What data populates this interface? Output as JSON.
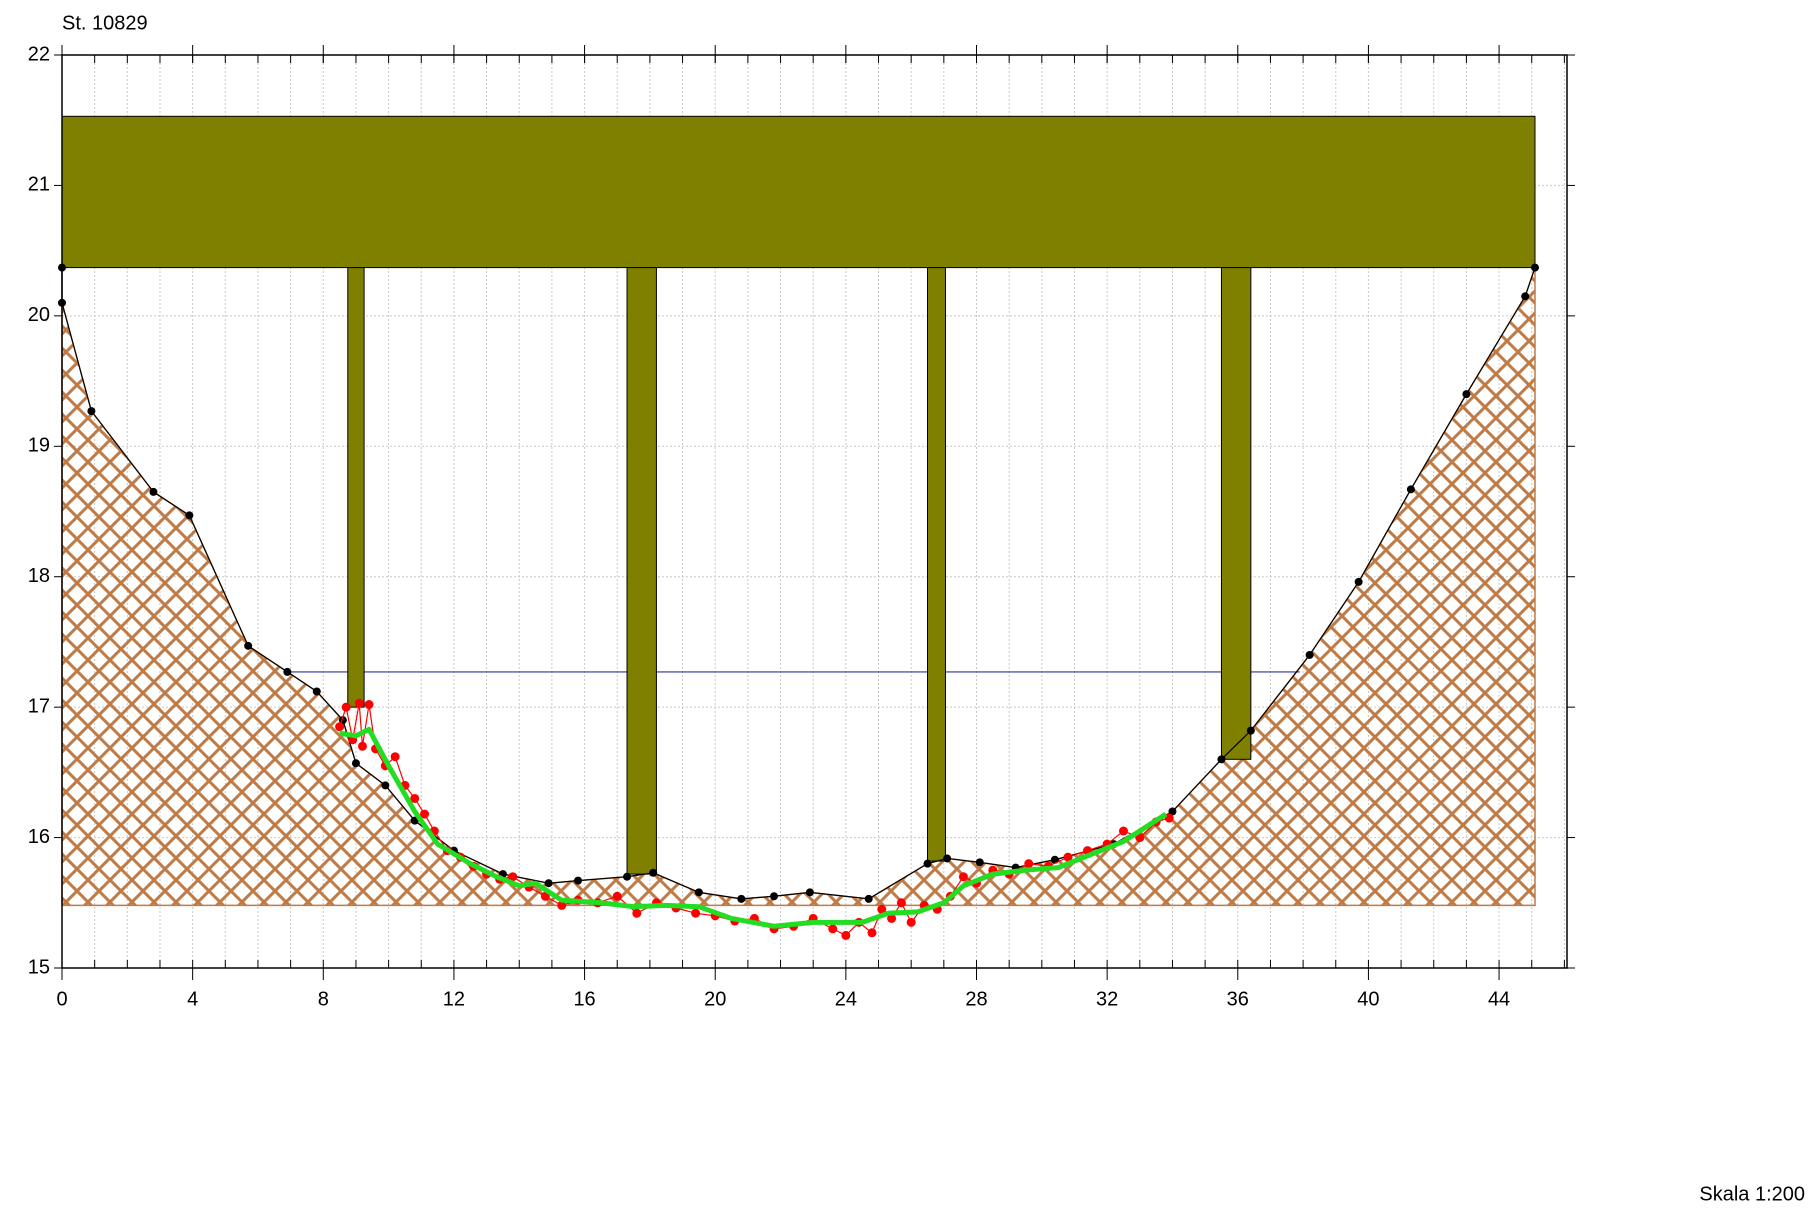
{
  "chart_data": {
    "type": "line",
    "title": "St. 10829",
    "annotation": "Skala 1:200",
    "xlim": [
      0,
      46.08
    ],
    "ylim": [
      15,
      22
    ],
    "xticks": [
      0,
      4,
      8,
      12,
      16,
      20,
      24,
      28,
      32,
      36,
      40,
      44
    ],
    "yticks": [
      15,
      16,
      17,
      18,
      19,
      20,
      21,
      22
    ],
    "x_minor_step": 1,
    "grid": true,
    "ground": {
      "color": "#c07a45",
      "base": 15.48
    },
    "water": {
      "color": "#3030a0",
      "x": [
        6.98,
        37.9
      ],
      "value": 17.27
    },
    "bridge": {
      "color": "#808000",
      "parts": [
        {
          "x0": 0,
          "x1": 45.1,
          "y0": 20.37,
          "y1": 21.53
        },
        {
          "x0": 8.75,
          "x1": 9.25,
          "y0": 17.0,
          "y1": 20.37
        },
        {
          "x0": 17.3,
          "x1": 18.2,
          "y0": 15.72,
          "y1": 20.37
        },
        {
          "x0": 26.5,
          "x1": 27.05,
          "y0": 15.82,
          "y1": 20.37
        },
        {
          "x0": 35.5,
          "x1": 36.4,
          "y0": 16.6,
          "y1": 20.37
        }
      ]
    },
    "series": [
      {
        "color": "#000000",
        "style": "line+points",
        "x": [
          0,
          0,
          0.9,
          2.8,
          3.9,
          5.7,
          6.9,
          7.8,
          8.6,
          9.0,
          9.9,
          10.8,
          12.0,
          13.5,
          14.9,
          15.8,
          17.3,
          18.1,
          19.5,
          20.8,
          21.8,
          22.9,
          24.7,
          26.5,
          27.1,
          28.1,
          29.2,
          30.4,
          32.2,
          34.0,
          35.5,
          36.4,
          38.2,
          39.7,
          41.3,
          43.0,
          44.8,
          45.1
        ],
        "values": [
          20.37,
          20.1,
          19.27,
          18.65,
          18.47,
          17.47,
          17.27,
          17.12,
          16.9,
          16.57,
          16.4,
          16.13,
          15.9,
          15.72,
          15.65,
          15.67,
          15.7,
          15.73,
          15.58,
          15.53,
          15.55,
          15.58,
          15.53,
          15.8,
          15.84,
          15.81,
          15.77,
          15.83,
          15.95,
          16.2,
          16.6,
          16.82,
          17.4,
          17.96,
          18.67,
          19.4,
          20.15,
          20.37
        ]
      },
      {
        "color": "#ff0000",
        "style": "line+points",
        "x": [
          8.5,
          8.7,
          8.9,
          9.1,
          9.2,
          9.4,
          9.6,
          9.9,
          10.2,
          10.5,
          10.8,
          11.1,
          11.4,
          11.8,
          12.2,
          12.6,
          13.0,
          13.4,
          13.8,
          14.3,
          14.8,
          15.3,
          15.8,
          16.4,
          17.0,
          17.6,
          18.2,
          18.8,
          19.4,
          20.0,
          20.6,
          21.2,
          21.8,
          22.4,
          23.0,
          23.6,
          24.0,
          24.4,
          24.8,
          25.1,
          25.4,
          25.7,
          26.0,
          26.4,
          26.8,
          27.2,
          27.6,
          28.0,
          28.5,
          29.0,
          29.6,
          30.2,
          30.8,
          31.4,
          32.0,
          32.5,
          33.0,
          33.5,
          33.9
        ],
        "values": [
          16.85,
          17.0,
          16.75,
          17.03,
          16.7,
          17.02,
          16.68,
          16.55,
          16.62,
          16.4,
          16.3,
          16.18,
          16.05,
          15.9,
          15.85,
          15.78,
          15.72,
          15.68,
          15.7,
          15.62,
          15.55,
          15.48,
          15.52,
          15.5,
          15.55,
          15.42,
          15.5,
          15.46,
          15.42,
          15.4,
          15.36,
          15.38,
          15.3,
          15.32,
          15.38,
          15.3,
          15.25,
          15.35,
          15.27,
          15.45,
          15.38,
          15.5,
          15.35,
          15.48,
          15.45,
          15.55,
          15.7,
          15.65,
          15.75,
          15.72,
          15.8,
          15.78,
          15.85,
          15.9,
          15.95,
          16.05,
          16.0,
          16.12,
          16.15
        ]
      },
      {
        "color": "#22dd22",
        "style": "line",
        "x": [
          8.5,
          9.0,
          9.4,
          10.0,
          10.8,
          11.5,
          12.5,
          13.3,
          14.0,
          14.5,
          15.3,
          16.5,
          17.5,
          18.5,
          19.5,
          20.5,
          21.8,
          23.0,
          24.5,
          25.3,
          26.2,
          27.0,
          27.6,
          28.5,
          29.5,
          30.5,
          31.5,
          32.5,
          33.8
        ],
        "values": [
          16.8,
          16.78,
          16.83,
          16.55,
          16.2,
          15.95,
          15.8,
          15.7,
          15.63,
          15.65,
          15.52,
          15.5,
          15.47,
          15.48,
          15.47,
          15.38,
          15.32,
          15.35,
          15.35,
          15.42,
          15.43,
          15.5,
          15.63,
          15.72,
          15.75,
          15.77,
          15.87,
          15.97,
          16.18
        ]
      }
    ]
  }
}
